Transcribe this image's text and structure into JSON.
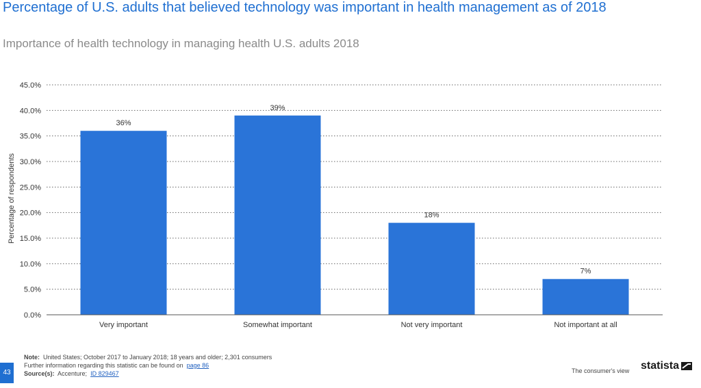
{
  "title": "Percentage of U.S. adults that believed technology was important in health management as of 2018",
  "subtitle": "Importance of health technology in managing health U.S. adults 2018",
  "chart_data": {
    "type": "bar",
    "categories": [
      "Very important",
      "Somewhat important",
      "Not very important",
      "Not important at all"
    ],
    "values": [
      36,
      39,
      18,
      7
    ],
    "value_labels": [
      "36%",
      "39%",
      "18%",
      "7%"
    ],
    "ylabel": "Percentage of respondents",
    "ylim": [
      0,
      45
    ],
    "yticks": [
      "0.0%",
      "5.0%",
      "10.0%",
      "15.0%",
      "20.0%",
      "25.0%",
      "30.0%",
      "35.0%",
      "40.0%",
      "45.0%"
    ],
    "grid": true,
    "bar_color": "#2a74d8"
  },
  "footer": {
    "note_label": "Note:",
    "note_text": "United States; October 2017 to January 2018; 18 years and older; 2,301 consumers",
    "further_text": "Further information regarding this statistic can be found on",
    "further_link": "page 86",
    "source_label": "Source(s):",
    "source_text": "Accenture;",
    "source_link": "ID 829467",
    "page_number": "43",
    "consumer_view": "The consumer's view",
    "brand": "statista"
  }
}
